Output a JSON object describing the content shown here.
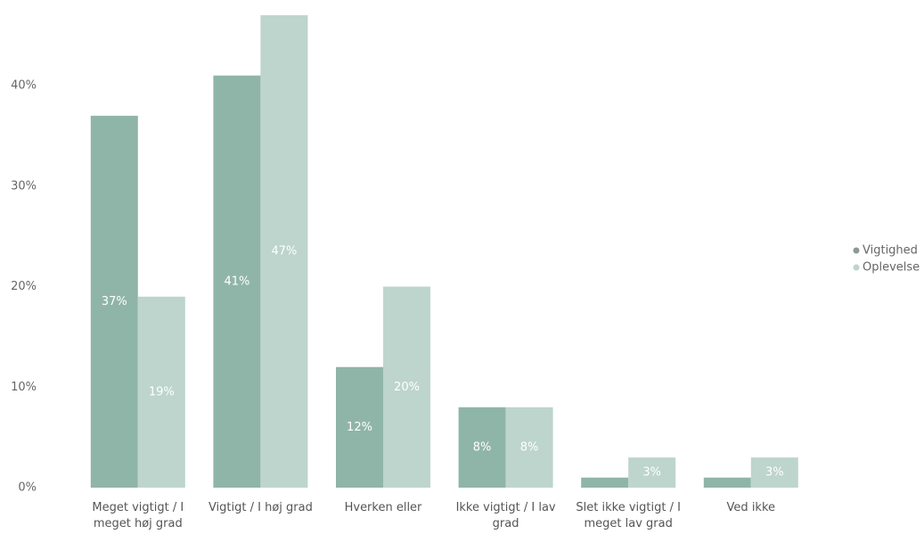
{
  "chart_data": {
    "type": "bar",
    "categories": [
      "Meget vigtigt / I meget høj grad",
      "Vigtigt / I høj grad",
      "Hverken eller",
      "Ikke vigtigt / I lav grad",
      "Slet ikke vigtigt / I meget lav grad",
      "Ved ikke"
    ],
    "series": [
      {
        "name": "Vigtighed",
        "color": "#8fb5a8",
        "values": [
          37,
          41,
          12,
          8,
          1,
          1
        ],
        "value_labels": [
          "37%",
          "41%",
          "12%",
          "8%",
          null,
          null
        ]
      },
      {
        "name": "Oplevelse",
        "color": "#bdd5cc",
        "values": [
          19,
          47,
          20,
          8,
          3,
          3
        ],
        "value_labels": [
          "19%",
          "47%",
          "20%",
          "8%",
          "3%",
          "3%"
        ]
      }
    ],
    "ylim": [
      0,
      48
    ],
    "yticks": [
      {
        "value": 0,
        "label": "0%"
      },
      {
        "value": 10,
        "label": "10%"
      },
      {
        "value": 20,
        "label": "20%"
      },
      {
        "value": 30,
        "label": "30%"
      },
      {
        "value": 40,
        "label": "40%"
      }
    ],
    "legend": "right"
  }
}
